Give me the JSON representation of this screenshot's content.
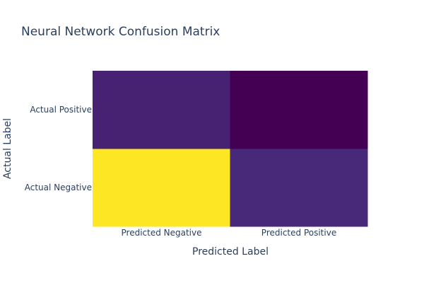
{
  "chart_data": {
    "type": "heatmap",
    "title": "Neural Network Confusion Matrix",
    "xlabel": "Predicted Label",
    "ylabel": "Actual Label",
    "x_categories": [
      "Predicted Negative",
      "Predicted Positive"
    ],
    "y_categories": [
      "Actual Negative",
      "Actual Positive"
    ],
    "z": [
      [
        54,
        6
      ],
      [
        5,
        0
      ]
    ],
    "zlim": [
      0,
      54
    ],
    "colorscale": "viridis",
    "colorscale_stops": [
      "#440154",
      "#482878",
      "#3e4989",
      "#31688e",
      "#26828e",
      "#1f9e89",
      "#35b779",
      "#6ece58",
      "#b5de2b",
      "#fde725"
    ],
    "showscale": false,
    "grid": false
  }
}
